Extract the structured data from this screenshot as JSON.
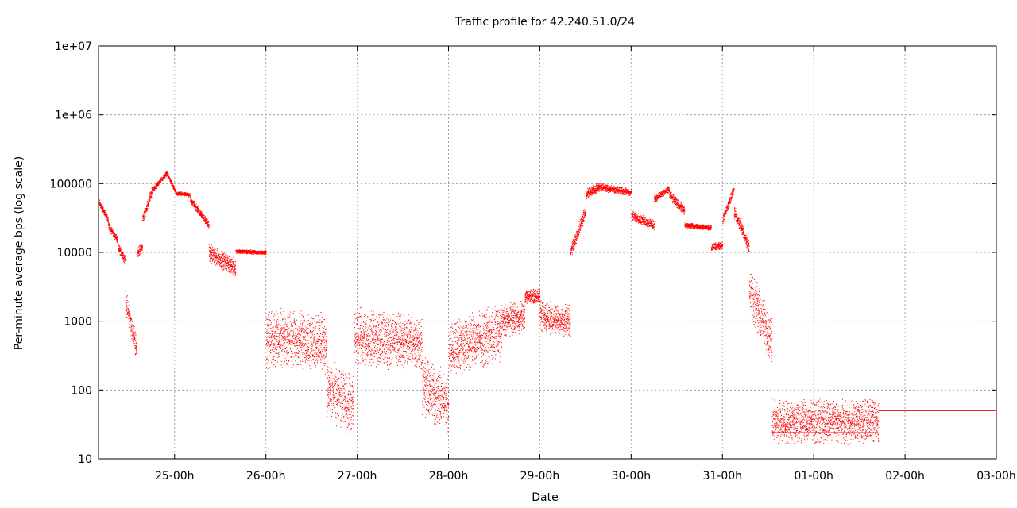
{
  "chart_data": {
    "type": "scatter",
    "title": "Traffic profile for 42.240.51.0/24",
    "xlabel": "Date",
    "ylabel": "Per-minute average bps (log scale)",
    "yscale": "log",
    "ylim": [
      10,
      10000000
    ],
    "xlim_hours": [
      0,
      212
    ],
    "grid": true,
    "legend": "none",
    "series_color": "#ff0000",
    "x_ticks": [
      {
        "label": "25-00h",
        "hour": 20
      },
      {
        "label": "26-00h",
        "hour": 44
      },
      {
        "label": "27-00h",
        "hour": 68
      },
      {
        "label": "28-00h",
        "hour": 92
      },
      {
        "label": "29-00h",
        "hour": 116
      },
      {
        "label": "30-00h",
        "hour": 140
      },
      {
        "label": "31-00h",
        "hour": 164
      },
      {
        "label": "01-00h",
        "hour": 188
      },
      {
        "label": "02-00h",
        "hour": 212
      },
      {
        "label": "03-00h",
        "hour": 236
      }
    ],
    "y_ticks": [
      {
        "label": "10",
        "value": 10
      },
      {
        "label": "100",
        "value": 100
      },
      {
        "label": "1000",
        "value": 1000
      },
      {
        "label": "10000",
        "value": 10000
      },
      {
        "label": "100000",
        "value": 100000
      },
      {
        "label": "1e+06",
        "value": 1000000
      },
      {
        "label": "1e+07",
        "value": 10000000
      }
    ],
    "segments": [
      {
        "from": 0,
        "to": 2.5,
        "bps_start": 55000,
        "bps_end": 30000,
        "spread": 1.15
      },
      {
        "from": 2.5,
        "to": 5,
        "bps_start": 25000,
        "bps_end": 15000,
        "spread": 1.15
      },
      {
        "from": 5,
        "to": 7,
        "bps_start": 12000,
        "bps_end": 8000,
        "spread": 1.2
      },
      {
        "from": 7,
        "to": 10,
        "bps_start": 2000,
        "bps_end": 400,
        "spread": 1.6
      },
      {
        "from": 10,
        "to": 11.5,
        "bps_start": 10000,
        "bps_end": 12000,
        "spread": 1.2
      },
      {
        "from": 11.5,
        "to": 14,
        "bps_start": 30000,
        "bps_end": 80000,
        "spread": 1.2
      },
      {
        "from": 14,
        "to": 18,
        "bps_start": 80000,
        "bps_end": 145000,
        "spread": 1.1
      },
      {
        "from": 18,
        "to": 20.5,
        "bps_start": 140000,
        "bps_end": 70000,
        "spread": 1.1
      },
      {
        "from": 20.5,
        "to": 24,
        "bps_start": 72000,
        "bps_end": 70000,
        "spread": 1.08
      },
      {
        "from": 24,
        "to": 29,
        "bps_start": 60000,
        "bps_end": 25000,
        "spread": 1.15
      },
      {
        "from": 29,
        "to": 36,
        "bps_start": 10000,
        "bps_end": 6000,
        "spread": 1.4
      },
      {
        "from": 36,
        "to": 44,
        "bps_start": 10500,
        "bps_end": 10000,
        "spread": 1.08
      },
      {
        "from": 44,
        "to": 60,
        "bps_start": 600,
        "bps_end": 500,
        "spread": 3.0
      },
      {
        "from": 60,
        "to": 67,
        "bps_start": 100,
        "bps_end": 60,
        "spread": 3.0
      },
      {
        "from": 67,
        "to": 85,
        "bps_start": 600,
        "bps_end": 500,
        "spread": 2.8
      },
      {
        "from": 85,
        "to": 92,
        "bps_start": 120,
        "bps_end": 60,
        "spread": 3.0
      },
      {
        "from": 92,
        "to": 106,
        "bps_start": 400,
        "bps_end": 700,
        "spread": 2.8
      },
      {
        "from": 106,
        "to": 112,
        "bps_start": 1000,
        "bps_end": 1200,
        "spread": 1.8
      },
      {
        "from": 112,
        "to": 116,
        "bps_start": 2300,
        "bps_end": 2300,
        "spread": 1.3
      },
      {
        "from": 116,
        "to": 124,
        "bps_start": 1200,
        "bps_end": 1000,
        "spread": 1.8
      },
      {
        "from": 124,
        "to": 128,
        "bps_start": 10000,
        "bps_end": 40000,
        "spread": 1.3
      },
      {
        "from": 128,
        "to": 132,
        "bps_start": 70000,
        "bps_end": 95000,
        "spread": 1.2
      },
      {
        "from": 132,
        "to": 140,
        "bps_start": 90000,
        "bps_end": 75000,
        "spread": 1.15
      },
      {
        "from": 140,
        "to": 146,
        "bps_start": 35000,
        "bps_end": 25000,
        "spread": 1.2
      },
      {
        "from": 146,
        "to": 150,
        "bps_start": 60000,
        "bps_end": 85000,
        "spread": 1.15
      },
      {
        "from": 150,
        "to": 154,
        "bps_start": 70000,
        "bps_end": 40000,
        "spread": 1.2
      },
      {
        "from": 154,
        "to": 161,
        "bps_start": 25000,
        "bps_end": 23000,
        "spread": 1.1
      },
      {
        "from": 161,
        "to": 164,
        "bps_start": 12000,
        "bps_end": 13000,
        "spread": 1.15
      },
      {
        "from": 164,
        "to": 167,
        "bps_start": 30000,
        "bps_end": 85000,
        "spread": 1.2
      },
      {
        "from": 167,
        "to": 171,
        "bps_start": 40000,
        "bps_end": 12000,
        "spread": 1.3
      },
      {
        "from": 171,
        "to": 177,
        "bps_start": 3000,
        "bps_end": 500,
        "spread": 2.5
      },
      {
        "from": 177,
        "to": 205,
        "bps_start": 35,
        "bps_end": 35,
        "spread": 2.2
      }
    ],
    "flat_lines": [
      {
        "from": 177,
        "to": 205,
        "bps": 24
      },
      {
        "from": 205,
        "to": 236,
        "bps": 50
      }
    ]
  }
}
